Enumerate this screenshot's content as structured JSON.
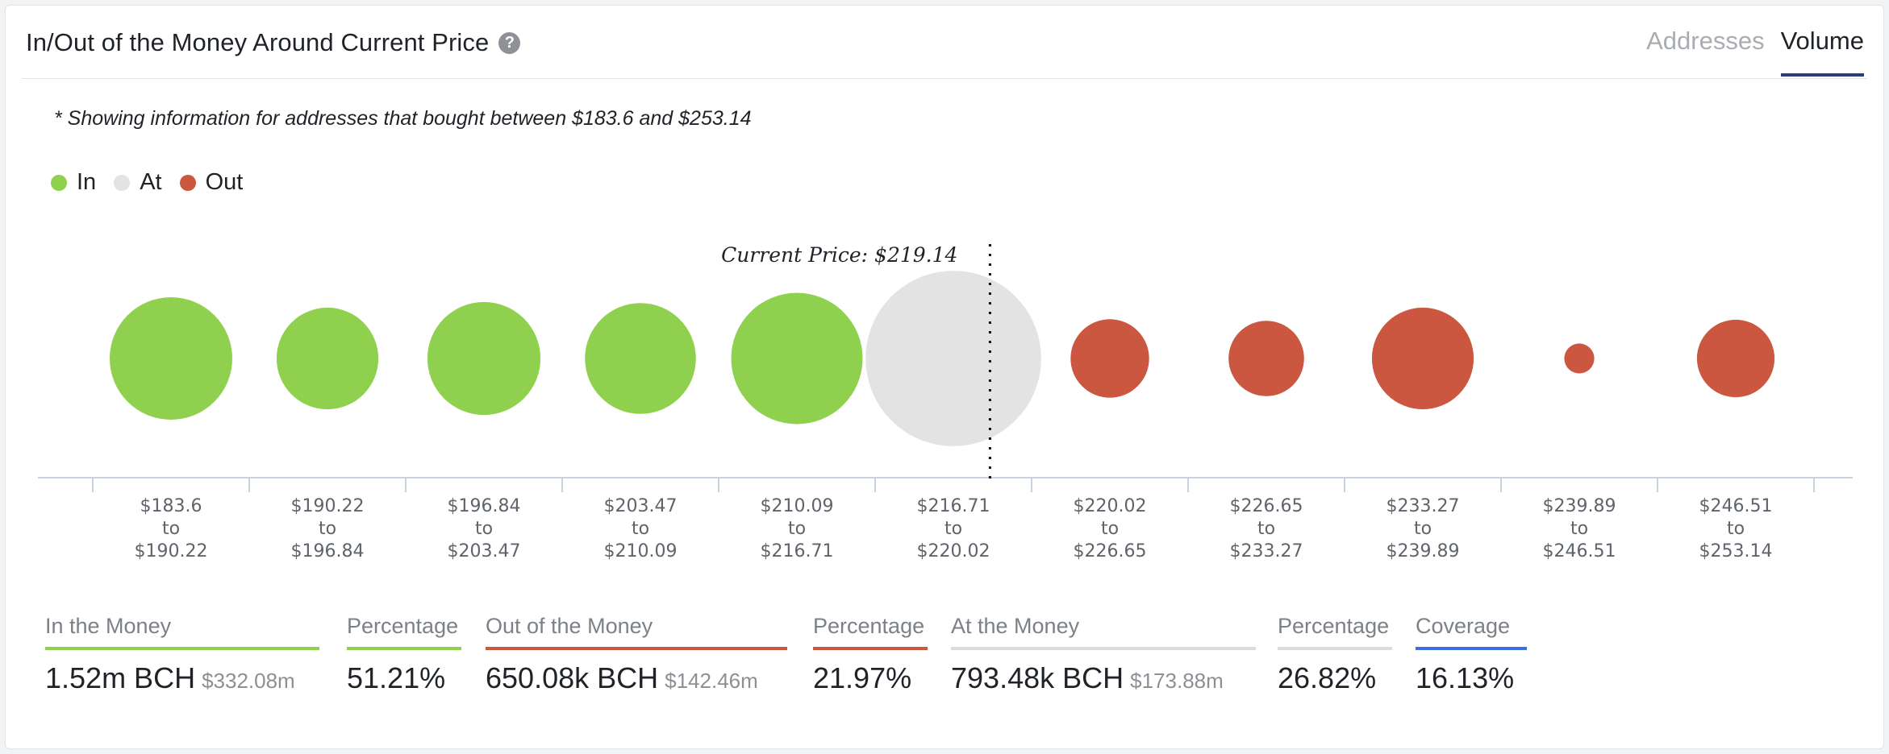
{
  "header": {
    "title": "In/Out of the Money Around Current Price",
    "help_icon": "question-circle-icon",
    "tabs": [
      {
        "label": "Addresses",
        "active": false
      },
      {
        "label": "Volume",
        "active": true
      }
    ]
  },
  "note": "* Showing information for addresses that bought between $183.6 and $253.14",
  "legend": [
    {
      "label": "In",
      "color": "#8fd14f"
    },
    {
      "label": "At",
      "color": "#e3e3e3"
    },
    {
      "label": "Out",
      "color": "#cc5741"
    }
  ],
  "chart_data": {
    "type": "bubble",
    "current_price_label": "Current Price: $219.14",
    "current_price": 219.14,
    "categories": [
      {
        "from": "$183.6",
        "to": "$190.22",
        "status": "in",
        "relative_size": 1.0
      },
      {
        "from": "$190.22",
        "to": "$196.84",
        "status": "in",
        "relative_size": 0.69
      },
      {
        "from": "$196.84",
        "to": "$203.47",
        "status": "in",
        "relative_size": 0.85
      },
      {
        "from": "$203.47",
        "to": "$210.09",
        "status": "in",
        "relative_size": 0.82
      },
      {
        "from": "$210.09",
        "to": "$216.71",
        "status": "in",
        "relative_size": 1.15
      },
      {
        "from": "$216.71",
        "to": "$220.02",
        "status": "at",
        "relative_size": 2.05
      },
      {
        "from": "$220.02",
        "to": "$226.65",
        "status": "out",
        "relative_size": 0.41
      },
      {
        "from": "$226.65",
        "to": "$233.27",
        "status": "out",
        "relative_size": 0.38
      },
      {
        "from": "$233.27",
        "to": "$239.89",
        "status": "out",
        "relative_size": 0.69
      },
      {
        "from": "$239.89",
        "to": "$246.51",
        "status": "out",
        "relative_size": 0.06
      },
      {
        "from": "$246.51",
        "to": "$253.14",
        "status": "out",
        "relative_size": 0.4
      }
    ],
    "range_word": "to"
  },
  "stats": [
    {
      "label": "In the Money",
      "value": "1.52m BCH",
      "sub": "$332.08m",
      "color": "#8fd14f"
    },
    {
      "label": "Percentage",
      "value": "51.21%",
      "sub": "",
      "color": "#8fd14f"
    },
    {
      "label": "Out of the Money",
      "value": "650.08k BCH",
      "sub": "$142.46m",
      "color": "#cc5741"
    },
    {
      "label": "Percentage",
      "value": "21.97%",
      "sub": "",
      "color": "#cc5741"
    },
    {
      "label": "At the Money",
      "value": "793.48k BCH",
      "sub": "$173.88m",
      "color": "#dcdcdc"
    },
    {
      "label": "Percentage",
      "value": "26.82%",
      "sub": "",
      "color": "#dcdcdc"
    },
    {
      "label": "Coverage",
      "value": "16.13%",
      "sub": "",
      "color": "#3d6fe0"
    }
  ]
}
